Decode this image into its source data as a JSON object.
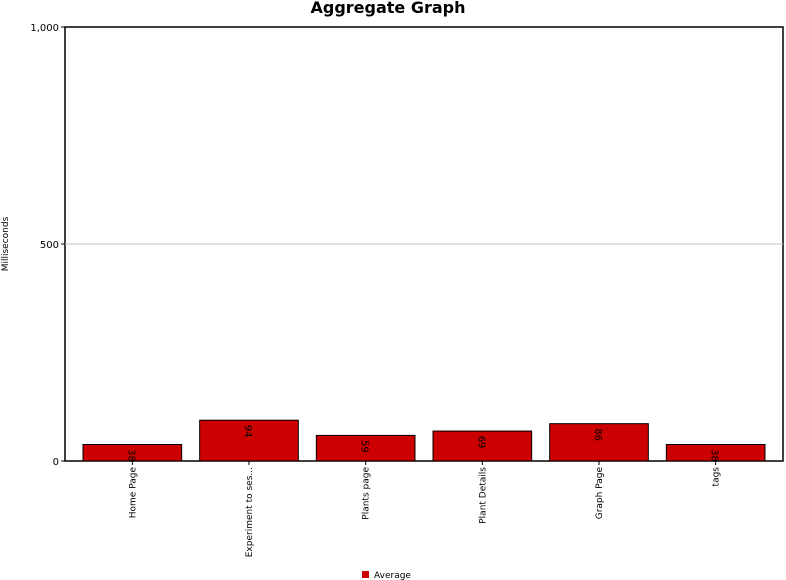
{
  "chart_data": {
    "type": "bar",
    "title": "Aggregate Graph",
    "ylabel": "Milliseconds",
    "xlabel": "",
    "ylim": [
      0,
      1000
    ],
    "yticks": [
      {
        "value": 0,
        "label": "0"
      },
      {
        "value": 500,
        "label": "500"
      },
      {
        "value": 1000,
        "label": "1,000"
      }
    ],
    "gridlines": [
      500
    ],
    "categories": [
      "Home Page",
      "Experiment to ses...",
      "Plants page",
      "Plant Details",
      "Graph Page",
      "tags"
    ],
    "series": [
      {
        "name": "Average",
        "color": "#cc0000",
        "values": [
          38,
          94,
          59,
          69,
          86,
          38
        ],
        "labels": [
          "38",
          "94",
          "59",
          "69",
          "86",
          "38"
        ]
      }
    ],
    "legend": "bottom-center",
    "grid": true
  }
}
